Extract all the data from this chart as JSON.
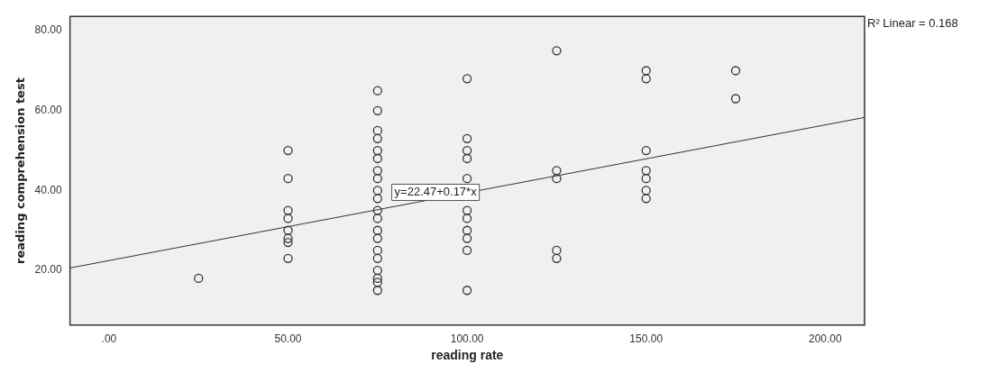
{
  "chart_data": {
    "type": "scatter",
    "xlabel": "reading rate",
    "ylabel": "reading comprehension test",
    "xlim": [
      -10.9,
      211
    ],
    "ylim": [
      6.3,
      83.6
    ],
    "xticks": [
      {
        "value": 0,
        "label": ".00"
      },
      {
        "value": 50,
        "label": "50.00"
      },
      {
        "value": 100,
        "label": "100.00"
      },
      {
        "value": 150,
        "label": "150.00"
      },
      {
        "value": 200,
        "label": "200.00"
      }
    ],
    "yticks": [
      {
        "value": 20,
        "label": "20.00"
      },
      {
        "value": 40,
        "label": "40.00"
      },
      {
        "value": 60,
        "label": "60.00"
      },
      {
        "value": 80,
        "label": "80.00"
      }
    ],
    "grid": false,
    "marker": "circle",
    "legend": false,
    "series": [
      {
        "color": "#333333",
        "x": [
          25,
          50,
          50,
          50,
          50,
          50,
          50,
          50,
          50,
          75,
          75,
          75,
          75,
          75,
          75,
          75,
          75,
          75,
          75,
          75,
          75,
          75,
          75,
          75,
          75,
          75,
          75,
          75,
          75,
          100,
          100,
          100,
          100,
          100,
          100,
          100,
          100,
          100,
          100,
          100,
          125,
          125,
          125,
          125,
          125,
          150,
          150,
          150,
          150,
          150,
          150,
          150,
          175,
          175
        ],
        "values": [
          18,
          50,
          43,
          35,
          33,
          30,
          28,
          27,
          23,
          65,
          60,
          55,
          53,
          50,
          48,
          45,
          43,
          40,
          38,
          35,
          33,
          30,
          28,
          25,
          23,
          20,
          18,
          17,
          15,
          68,
          53,
          50,
          48,
          43,
          35,
          33,
          30,
          28,
          25,
          15,
          75,
          45,
          43,
          25,
          23,
          70,
          68,
          50,
          45,
          43,
          40,
          38,
          70,
          63
        ]
      },
      {
        "type": "line",
        "marker": "none",
        "color": "#333333",
        "x": [
          -10.9,
          211
        ],
        "values": [
          20.6,
          58.3
        ]
      }
    ],
    "annotations": [
      "R² Linear = 0.168",
      "y=22.47+0.17*x"
    ]
  }
}
